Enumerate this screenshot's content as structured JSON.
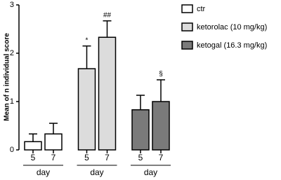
{
  "chart_data": {
    "type": "bar",
    "ylabel": "Mean of n individual score",
    "xlabel": "day",
    "categories": [
      "5",
      "7"
    ],
    "ylim": [
      0,
      3
    ],
    "yticks": [
      0,
      1,
      2,
      3
    ],
    "series": [
      {
        "name": "ctr",
        "color": "#ffffff",
        "values": [
          0.17,
          0.33
        ],
        "errors": [
          0.16,
          0.22
        ]
      },
      {
        "name": "ketorolac (10 mg/kg)",
        "color": "#dcdcdc",
        "values": [
          1.68,
          2.33
        ],
        "errors": [
          0.47,
          0.34
        ],
        "annotations": [
          "*",
          "##"
        ]
      },
      {
        "name": "ketogal (16.3 mg/kg)",
        "color": "#7a7a7a",
        "values": [
          0.83,
          1.0
        ],
        "errors": [
          0.3,
          0.45
        ],
        "annotations": [
          null,
          "§"
        ]
      }
    ]
  }
}
